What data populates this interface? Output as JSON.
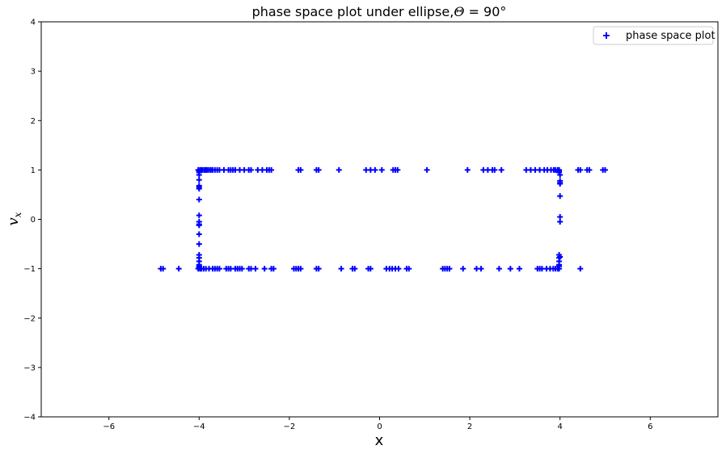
{
  "chart_data": {
    "type": "scatter",
    "title": "phase space plot under ellipse,Θ = 90°",
    "title_parts": [
      "phase space plot under ellipse,",
      "Θ",
      " = 90°"
    ],
    "xlabel": "x",
    "ylabel_main": "v",
    "ylabel_sub": "x",
    "xlim": [
      -7.5,
      7.5
    ],
    "ylim": [
      -4,
      4
    ],
    "xticks": [
      -6,
      -4,
      -2,
      0,
      2,
      4,
      6
    ],
    "xtick_labels": [
      "−6",
      "−4",
      "−2",
      "0",
      "2",
      "4",
      "6"
    ],
    "yticks": [
      -4,
      -3,
      -2,
      -1,
      0,
      1,
      2,
      3,
      4
    ],
    "ytick_labels": [
      "−4",
      "−3",
      "−2",
      "−1",
      "0",
      "1",
      "2",
      "3",
      "4"
    ],
    "grid": false,
    "legend_position": "top-right",
    "marker": "+",
    "series": [
      {
        "name": "phase space plot",
        "color": "#0000ff",
        "x": [
          -4.02,
          -3.98,
          -3.95,
          -3.92,
          -3.88,
          -3.85,
          -3.82,
          -3.78,
          -3.74,
          -3.7,
          -3.65,
          -3.6,
          -3.55,
          -3.45,
          -3.35,
          -3.3,
          -3.25,
          -3.2,
          -3.1,
          -3.0,
          -2.9,
          -2.85,
          -2.7,
          -2.6,
          -2.5,
          -2.45,
          -2.4,
          -1.8,
          -1.75,
          -1.4,
          -1.35,
          -0.9,
          -0.3,
          -0.2,
          -0.1,
          0.05,
          0.3,
          0.35,
          0.4,
          1.05,
          1.95,
          2.3,
          2.4,
          2.5,
          2.55,
          2.7,
          3.25,
          3.35,
          3.45,
          3.55,
          3.65,
          3.72,
          3.8,
          3.86,
          3.9,
          3.95,
          3.98,
          4.4,
          4.45,
          4.6,
          4.65,
          4.95,
          5.0,
          -4.85,
          -4.8,
          -4.45,
          -4.02,
          -3.98,
          -3.95,
          -3.9,
          -3.85,
          -3.78,
          -3.7,
          -3.65,
          -3.6,
          -3.55,
          -3.4,
          -3.35,
          -3.3,
          -3.2,
          -3.15,
          -3.1,
          -3.05,
          -2.9,
          -2.85,
          -2.75,
          -2.55,
          -2.4,
          -2.35,
          -1.9,
          -1.85,
          -1.8,
          -1.75,
          -1.4,
          -1.35,
          -0.85,
          -0.6,
          -0.55,
          -0.25,
          -0.2,
          0.15,
          0.22,
          0.28,
          0.35,
          0.42,
          0.6,
          0.65,
          1.4,
          1.45,
          1.5,
          1.55,
          1.85,
          2.15,
          2.25,
          2.65,
          2.9,
          3.1,
          3.5,
          3.55,
          3.6,
          3.7,
          3.78,
          3.85,
          3.9,
          3.95,
          3.98,
          4.45,
          -4.0,
          -4.0,
          -4.0,
          -4.0,
          -4.0,
          -4.0,
          -4.0,
          -4.0,
          -4.0,
          -4.0,
          -4.0,
          -4.0,
          -4.0,
          -4.0,
          -4.0,
          -4.0,
          -4.0,
          -4.0,
          -4.0,
          -4.0,
          3.98,
          3.98,
          4.0,
          4.0,
          4.0,
          4.0,
          4.0,
          4.0,
          3.98,
          3.98,
          3.98,
          3.98,
          4.0,
          4.0,
          3.98
        ],
        "y": [
          1,
          1,
          1,
          1,
          1,
          1,
          1,
          1,
          1,
          1,
          1,
          1,
          1,
          1,
          1,
          1,
          1,
          1,
          1,
          1,
          1,
          1,
          1,
          1,
          1,
          1,
          1,
          1,
          1,
          1,
          1,
          1,
          1,
          1,
          1,
          1,
          1,
          1,
          1,
          1,
          1,
          1,
          1,
          1,
          1,
          1,
          1,
          1,
          1,
          1,
          1,
          1,
          1,
          1,
          1,
          1,
          1,
          1,
          1,
          1,
          1,
          1,
          1,
          -1,
          -1,
          -1,
          -1,
          -1,
          -1,
          -1,
          -1,
          -1,
          -1,
          -1,
          -1,
          -1,
          -1,
          -1,
          -1,
          -1,
          -1,
          -1,
          -1,
          -1,
          -1,
          -1,
          -1,
          -1,
          -1,
          -1,
          -1,
          -1,
          -1,
          -1,
          -1,
          -1,
          -1,
          -1,
          -1,
          -1,
          -1,
          -1,
          -1,
          -1,
          -1,
          -1,
          -1,
          -1,
          -1,
          -1,
          -1,
          -1,
          -1,
          -1,
          -1,
          -1,
          -1,
          -1,
          -1,
          -1,
          -1,
          -1,
          -1,
          -1,
          -1,
          -1,
          -1,
          0.95,
          0.9,
          0.8,
          0.68,
          0.62,
          0.4,
          0.08,
          -0.05,
          -0.12,
          -0.3,
          -0.5,
          -0.72,
          -0.78,
          -0.85,
          -0.92,
          -0.95,
          0.97,
          -0.97,
          0.65,
          -0.1,
          0.98,
          0.95,
          0.9,
          0.78,
          0.72,
          0.47,
          0.05,
          -0.05,
          -0.72,
          -0.78,
          -0.85,
          -0.92,
          0.74,
          -0.76,
          -0.95
        ]
      }
    ]
  }
}
